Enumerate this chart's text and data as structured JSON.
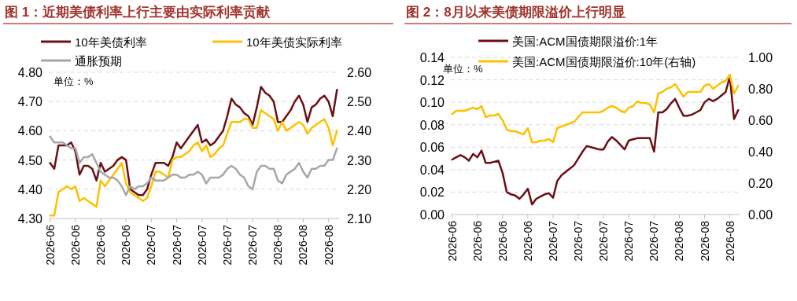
{
  "chart_data": [
    {
      "type": "line",
      "title": "图 1：近期美债利率上行主要由实际利率贡献",
      "annotations": [
        "单位：%"
      ],
      "categories": [
        "2026-06",
        null,
        null,
        null,
        null,
        null,
        "2026-06",
        null,
        null,
        null,
        null,
        null,
        "2026-06",
        null,
        null,
        null,
        null,
        null,
        "2026-06",
        null,
        null,
        null,
        null,
        null,
        "2026-07",
        null,
        null,
        null,
        null,
        null,
        "2026-07",
        null,
        null,
        null,
        null,
        null,
        "2026-07",
        null,
        null,
        null,
        null,
        null,
        "2026-07",
        null,
        null,
        null,
        null,
        null,
        "2026-07",
        null,
        null,
        null,
        null,
        null,
        "2026-08",
        null,
        null,
        null,
        null,
        null,
        "2026-08",
        null,
        null,
        null,
        null,
        null,
        "2026-08",
        null,
        null
      ],
      "ylim": [
        4.3,
        4.8
      ],
      "yticks": [
        {
          "value": 4.3,
          "label": "4.30"
        },
        {
          "value": 4.4,
          "label": "4.40"
        },
        {
          "value": 4.5,
          "label": "4.50"
        },
        {
          "value": 4.6,
          "label": "4.60"
        },
        {
          "value": 4.7,
          "label": "4.70"
        },
        {
          "value": 4.8,
          "label": "4.80"
        }
      ],
      "y2lim": [
        2.1,
        2.6
      ],
      "y2ticks": [
        {
          "value": 2.1,
          "label": "2.10"
        },
        {
          "value": 2.2,
          "label": "2.20"
        },
        {
          "value": 2.3,
          "label": "2.30"
        },
        {
          "value": 2.4,
          "label": "2.40"
        },
        {
          "value": 2.5,
          "label": "2.50"
        },
        {
          "value": 2.6,
          "label": "2.60"
        }
      ],
      "grid": "y",
      "legend": "top",
      "marker": "none",
      "line_style": "solid",
      "series": [
        {
          "name": "10年美债利率",
          "color": "#6b0f12",
          "values": [
            4.49,
            4.47,
            4.55,
            4.55,
            4.55,
            4.56,
            4.53,
            4.45,
            4.48,
            4.48,
            4.47,
            4.43,
            4.49,
            4.46,
            4.47,
            4.48,
            4.5,
            4.51,
            4.5,
            4.4,
            4.39,
            4.38,
            4.38,
            4.4,
            4.45,
            4.49,
            4.49,
            4.49,
            4.48,
            4.51,
            4.56,
            4.54,
            4.56,
            4.58,
            4.6,
            4.62,
            4.56,
            4.57,
            4.55,
            4.56,
            4.58,
            4.6,
            4.65,
            4.71,
            4.69,
            4.68,
            4.66,
            4.65,
            4.62,
            4.68,
            4.75,
            4.73,
            4.72,
            4.7,
            4.63,
            4.63,
            4.65,
            4.67,
            4.7,
            4.72,
            4.69,
            4.63,
            4.68,
            4.69,
            4.71,
            4.72,
            4.7,
            4.65,
            4.74
          ]
        },
        {
          "name": "10年美债实际利率",
          "color": "#ffc000",
          "axis": "y2",
          "values": [
            2.11,
            2.11,
            2.19,
            2.2,
            2.21,
            2.2,
            2.21,
            2.16,
            2.17,
            2.16,
            2.15,
            2.14,
            2.23,
            2.21,
            2.23,
            2.25,
            2.27,
            2.29,
            2.22,
            2.19,
            2.18,
            2.17,
            2.16,
            2.17,
            2.21,
            2.26,
            2.26,
            2.25,
            2.24,
            2.3,
            2.31,
            2.31,
            2.32,
            2.33,
            2.35,
            2.36,
            2.33,
            2.35,
            2.31,
            2.32,
            2.34,
            2.35,
            2.39,
            2.43,
            2.43,
            2.43,
            2.44,
            2.44,
            2.41,
            2.41,
            2.47,
            2.46,
            2.45,
            2.44,
            2.4,
            2.43,
            2.4,
            2.41,
            2.42,
            2.43,
            2.42,
            2.39,
            2.41,
            2.42,
            2.43,
            2.44,
            2.41,
            2.35,
            2.4
          ]
        },
        {
          "name": "通胀预期",
          "color": "#a6a6a6",
          "axis": "y2",
          "values": [
            2.38,
            2.36,
            2.36,
            2.36,
            2.35,
            2.34,
            2.34,
            2.29,
            2.31,
            2.31,
            2.32,
            2.29,
            2.26,
            2.25,
            2.24,
            2.24,
            2.23,
            2.21,
            2.18,
            2.21,
            2.2,
            2.21,
            2.21,
            2.22,
            2.24,
            2.23,
            2.23,
            2.23,
            2.24,
            2.25,
            2.25,
            2.24,
            2.24,
            2.25,
            2.25,
            2.26,
            2.25,
            2.22,
            2.24,
            2.24,
            2.24,
            2.25,
            2.27,
            2.28,
            2.27,
            2.25,
            2.24,
            2.21,
            2.2,
            2.26,
            2.28,
            2.28,
            2.27,
            2.27,
            2.23,
            2.22,
            2.25,
            2.26,
            2.27,
            2.29,
            2.26,
            2.24,
            2.27,
            2.27,
            2.28,
            2.28,
            2.3,
            2.3,
            2.34
          ]
        }
      ]
    },
    {
      "type": "line",
      "title": "图 2：8月以来美债期限溢价上行明显",
      "annotations": [
        "单位：%"
      ],
      "categories": [
        "2026-06",
        null,
        null,
        null,
        null,
        null,
        "2026-06",
        null,
        null,
        null,
        null,
        null,
        "2026-06",
        null,
        null,
        null,
        null,
        null,
        "2026-06",
        null,
        null,
        null,
        null,
        null,
        "2026-07",
        null,
        null,
        null,
        null,
        null,
        "2026-07",
        null,
        null,
        null,
        null,
        null,
        "2026-07",
        null,
        null,
        null,
        null,
        null,
        "2026-07",
        null,
        null,
        null,
        null,
        null,
        "2026-07",
        null,
        null,
        null,
        null,
        null,
        "2026-08",
        null,
        null,
        null,
        null,
        null,
        "2026-08",
        null,
        null,
        null,
        null,
        null,
        "2026-08",
        null,
        null
      ],
      "ylim": [
        0,
        0.14
      ],
      "yticks": [
        {
          "value": 0,
          "label": "0.00"
        },
        {
          "value": 0.02,
          "label": "0.02"
        },
        {
          "value": 0.04,
          "label": "0.04"
        },
        {
          "value": 0.06,
          "label": "0.06"
        },
        {
          "value": 0.08,
          "label": "0.08"
        },
        {
          "value": 0.1,
          "label": "0.10"
        },
        {
          "value": 0.12,
          "label": "0.12"
        },
        {
          "value": 0.14,
          "label": "0.14"
        }
      ],
      "y2lim": [
        0,
        1
      ],
      "y2ticks": [
        {
          "value": 0,
          "label": "0.00"
        },
        {
          "value": 0.2,
          "label": "0.20"
        },
        {
          "value": 0.4,
          "label": "0.40"
        },
        {
          "value": 0.6,
          "label": "0.60"
        },
        {
          "value": 0.8,
          "label": "0.80"
        },
        {
          "value": 1,
          "label": "1.00"
        }
      ],
      "grid": "y",
      "legend": "top",
      "marker": "none",
      "line_style": "solid",
      "series": [
        {
          "name": "美国:ACM国债期限溢价:1年",
          "color": "#6b0f12",
          "values": [
            0.049,
            0.051,
            0.053,
            0.051,
            0.048,
            0.054,
            0.051,
            0.057,
            0.046,
            0.046,
            0.047,
            0.048,
            0.037,
            0.02,
            0.018,
            0.017,
            0.014,
            0.018,
            0.023,
            0.009,
            0.014,
            0.016,
            0.018,
            0.019,
            0.015,
            0.03,
            0.035,
            0.038,
            0.041,
            0.044,
            0.05,
            0.056,
            0.061,
            0.06,
            0.059,
            0.058,
            0.058,
            0.065,
            0.069,
            0.066,
            0.062,
            0.058,
            0.066,
            0.067,
            0.068,
            0.068,
            0.068,
            0.068,
            0.056,
            0.091,
            0.091,
            0.094,
            0.099,
            0.103,
            0.095,
            0.088,
            0.088,
            0.089,
            0.091,
            0.093,
            0.1,
            0.103,
            0.101,
            0.103,
            0.106,
            0.109,
            0.123,
            0.085,
            0.093
          ]
        },
        {
          "name": "美国:ACM国债期限溢价:10年(右轴)",
          "color": "#ffc000",
          "axis": "y2",
          "values": [
            0.64,
            0.66,
            0.66,
            0.66,
            0.67,
            0.68,
            0.67,
            0.69,
            0.62,
            0.63,
            0.63,
            0.64,
            0.6,
            0.54,
            0.53,
            0.53,
            0.52,
            0.51,
            0.55,
            0.46,
            0.46,
            0.47,
            0.47,
            0.48,
            0.46,
            0.55,
            0.56,
            0.57,
            0.58,
            0.59,
            0.62,
            0.65,
            0.65,
            0.65,
            0.65,
            0.65,
            0.66,
            0.68,
            0.69,
            0.68,
            0.66,
            0.65,
            0.68,
            0.69,
            0.72,
            0.71,
            0.71,
            0.7,
            0.65,
            0.77,
            0.78,
            0.8,
            0.81,
            0.83,
            0.79,
            0.75,
            0.78,
            0.78,
            0.78,
            0.78,
            0.82,
            0.83,
            0.8,
            0.82,
            0.84,
            0.85,
            0.89,
            0.77,
            0.82
          ]
        }
      ]
    }
  ]
}
